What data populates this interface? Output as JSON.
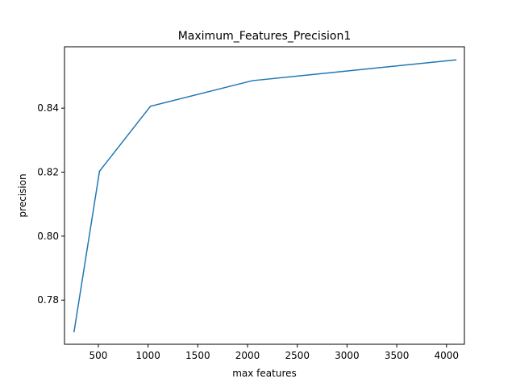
{
  "chart_data": {
    "type": "line",
    "title": "Maximum_Features_Precision1",
    "xlabel": "max features",
    "ylabel": "precision",
    "xlim": [
      160,
      4180
    ],
    "ylim": [
      0.7662,
      0.8592
    ],
    "xticks": [
      500,
      1000,
      1500,
      2000,
      2500,
      3000,
      3500,
      4000
    ],
    "yticks": [
      0.78,
      0.8,
      0.82,
      0.84
    ],
    "ytick_labels": [
      "0.78",
      "0.80",
      "0.82",
      "0.84"
    ],
    "grid": false,
    "line_color": "#1f77b4",
    "series": [
      {
        "x": [
          256,
          512,
          1024,
          2048,
          4096
        ],
        "values": [
          0.7701,
          0.8203,
          0.8406,
          0.8486,
          0.8551
        ]
      }
    ]
  }
}
